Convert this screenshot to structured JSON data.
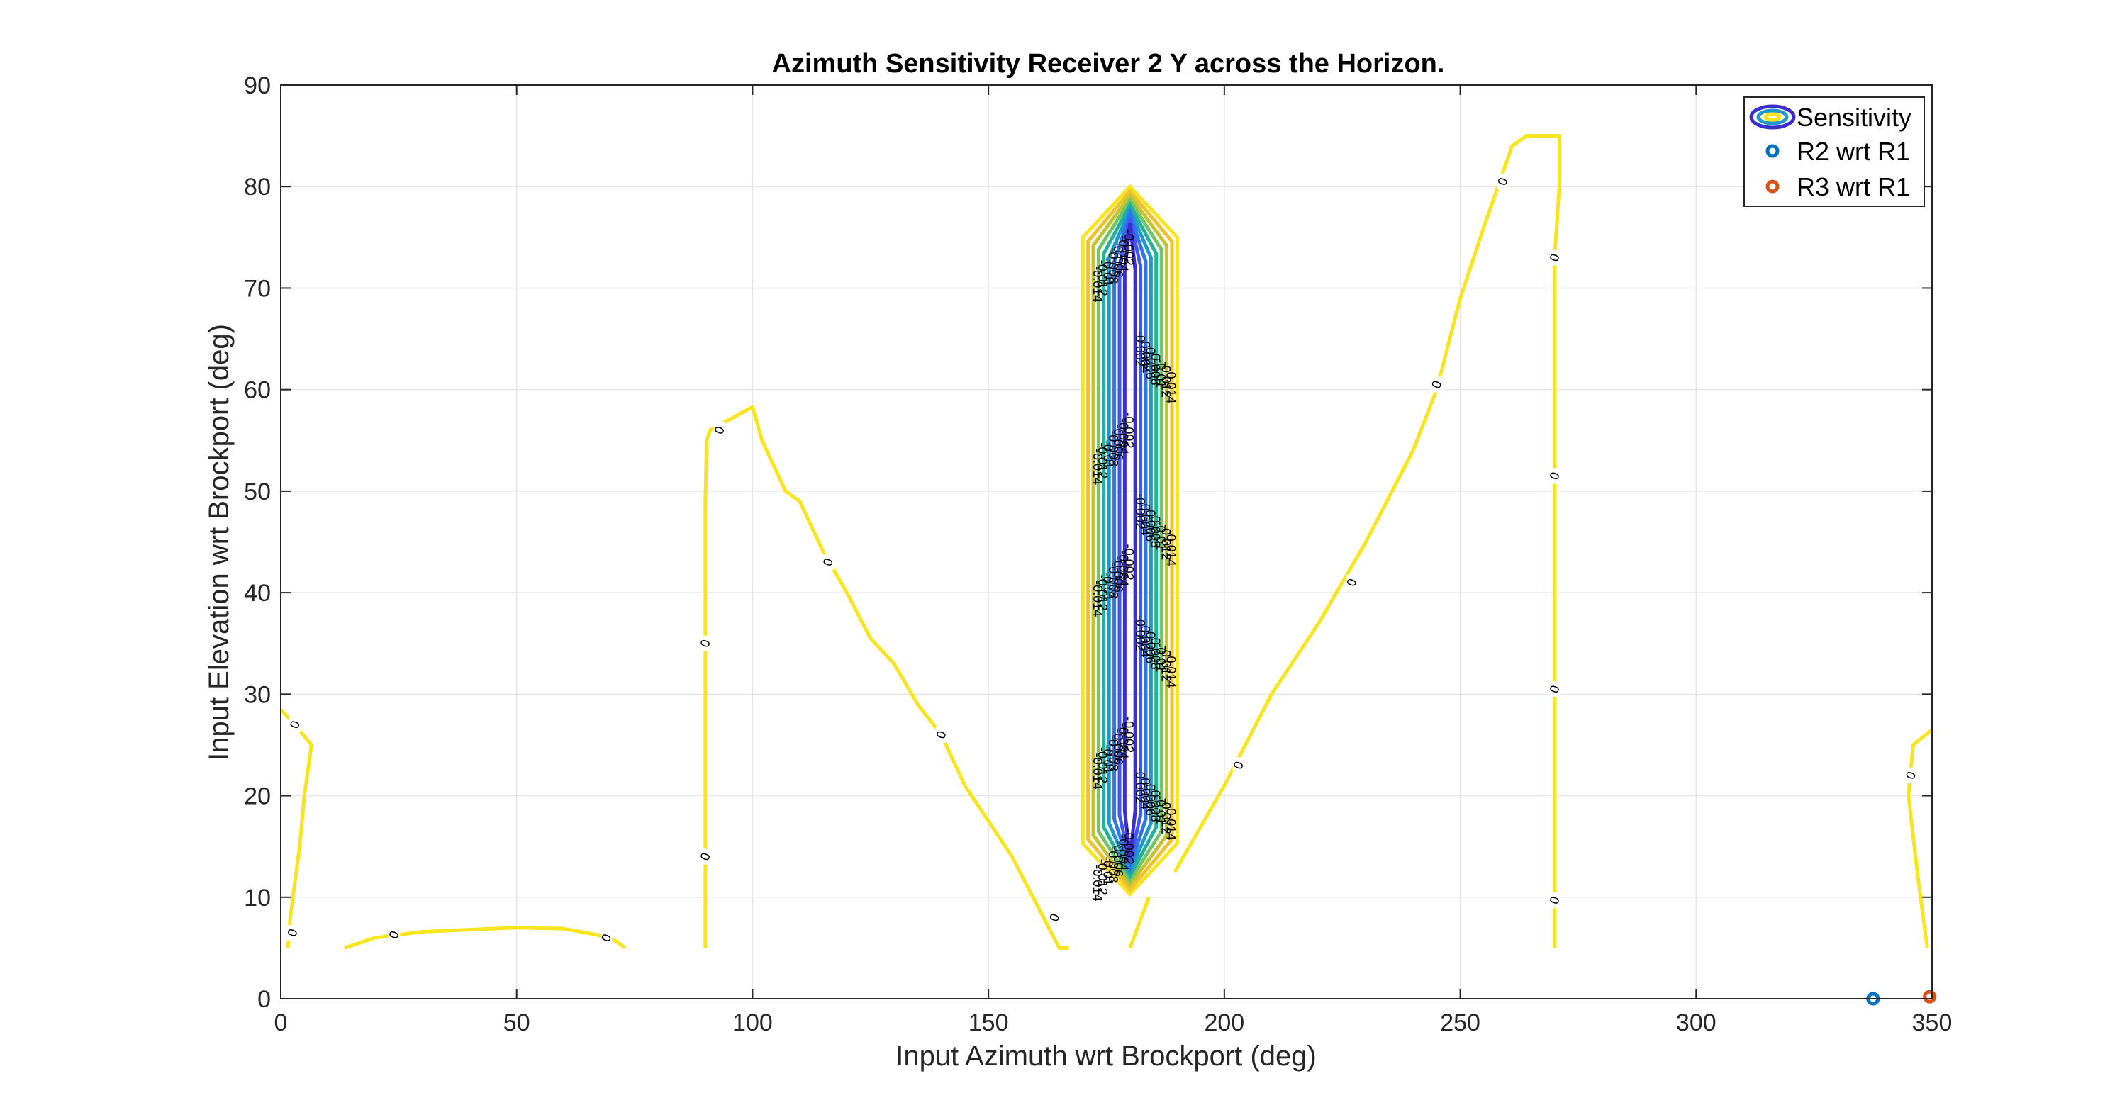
{
  "chart_data": {
    "type": "contour",
    "title": "Azimuth Sensitivity Receiver 2 Y across the Horizon.",
    "xlabel": "Input Azimuth wrt Brockport (deg)",
    "ylabel": "Input Elevation wrt Brockport (deg)",
    "xlim": [
      0,
      350
    ],
    "ylim": [
      0,
      90
    ],
    "xticks": [
      0,
      50,
      100,
      150,
      200,
      250,
      300,
      350
    ],
    "yticks": [
      0,
      10,
      20,
      30,
      40,
      50,
      60,
      70,
      80,
      90
    ],
    "grid": true,
    "legend_position": "top-right",
    "legend": [
      {
        "name": "Sensitivity",
        "marker": "contour",
        "color": "#3b2fd1"
      },
      {
        "name": "R2 wrt R1",
        "marker": "circle",
        "color": "#0072BD"
      },
      {
        "name": "R3 wrt R1",
        "marker": "circle",
        "color": "#D95319"
      }
    ],
    "zero_contours": [
      {
        "points": [
          [
            0,
            28.5
          ],
          [
            3,
            27
          ],
          [
            6.5,
            25
          ],
          [
            5,
            20
          ],
          [
            4,
            15
          ],
          [
            2,
            8
          ],
          [
            1.5,
            5
          ]
        ]
      },
      {
        "points": [
          [
            13.5,
            5
          ],
          [
            20,
            6
          ],
          [
            30,
            6.6
          ],
          [
            50,
            7
          ],
          [
            60,
            6.9
          ],
          [
            67,
            6.3
          ],
          [
            71,
            5.7
          ],
          [
            73,
            5
          ]
        ]
      },
      {
        "points": [
          [
            90,
            5
          ],
          [
            90,
            15
          ],
          [
            90,
            35
          ],
          [
            90,
            49
          ],
          [
            90.3,
            55
          ],
          [
            91,
            56
          ],
          [
            100,
            58.3
          ],
          [
            102,
            55
          ],
          [
            107,
            50
          ],
          [
            110,
            49
          ],
          [
            115,
            44
          ],
          [
            120,
            40
          ],
          [
            125,
            35.5
          ],
          [
            130,
            33
          ],
          [
            135,
            29
          ],
          [
            140,
            26
          ],
          [
            145,
            21
          ],
          [
            155,
            14
          ],
          [
            160,
            9.5
          ],
          [
            165,
            5
          ],
          [
            167,
            5
          ]
        ]
      },
      {
        "points": [
          [
            180,
            5
          ],
          [
            184,
            10
          ]
        ]
      },
      {
        "points": [
          [
            189.5,
            12.5
          ],
          [
            200,
            21
          ],
          [
            210,
            30
          ],
          [
            220,
            37
          ],
          [
            230,
            45
          ],
          [
            240,
            54
          ],
          [
            245,
            60
          ],
          [
            250,
            69
          ],
          [
            255,
            76
          ],
          [
            258,
            80
          ],
          [
            261,
            84
          ],
          [
            264,
            85
          ],
          [
            271,
            85
          ],
          [
            271,
            80
          ],
          [
            270,
            73
          ],
          [
            270,
            60
          ],
          [
            270,
            51.5
          ],
          [
            270,
            40
          ],
          [
            270,
            30.5
          ],
          [
            270,
            20
          ],
          [
            270,
            10
          ],
          [
            270,
            5
          ]
        ]
      },
      {
        "points": [
          [
            349,
            5
          ],
          [
            347,
            12
          ],
          [
            345.5,
            18
          ],
          [
            345,
            20
          ],
          [
            346,
            25
          ],
          [
            350,
            26.5
          ]
        ]
      }
    ],
    "zero_labels": [
      [
        3,
        27
      ],
      [
        2.5,
        6.5
      ],
      [
        24,
        6.3
      ],
      [
        69,
        6
      ],
      [
        90,
        35
      ],
      [
        90,
        14
      ],
      [
        93,
        56
      ],
      [
        116,
        43
      ],
      [
        140,
        26
      ],
      [
        164,
        8
      ],
      [
        203,
        23
      ],
      [
        227,
        41
      ],
      [
        245,
        60.5
      ],
      [
        259,
        80.5
      ],
      [
        270,
        73
      ],
      [
        270,
        51.5
      ],
      [
        270,
        30.5
      ],
      [
        270,
        9.7
      ],
      [
        345.5,
        22
      ]
    ],
    "sensitivity_band": {
      "x_center": 180,
      "y_bottom": 10.3,
      "y_top": 80,
      "half_width": 10,
      "levels": [
        "0",
        "-0.002",
        "-0.004",
        "-0.006",
        "-0.008",
        "-0.01",
        "-0.012",
        "-0.014"
      ],
      "colors": [
        "#f9e51e",
        "#f2c12e",
        "#c2c530",
        "#74c565",
        "#23b39c",
        "#1f99c9",
        "#2f74ee",
        "#4156f5",
        "#3a2fcc"
      ],
      "label_rows": [
        74,
        64,
        56,
        48,
        43,
        36,
        26,
        21,
        15
      ]
    },
    "points": [
      {
        "name": "R2 wrt R1",
        "x": 337.5,
        "y": 0,
        "color": "#0072BD"
      },
      {
        "name": "R3 wrt R1",
        "x": 349.5,
        "y": 0.2,
        "color": "#D95319"
      }
    ]
  }
}
